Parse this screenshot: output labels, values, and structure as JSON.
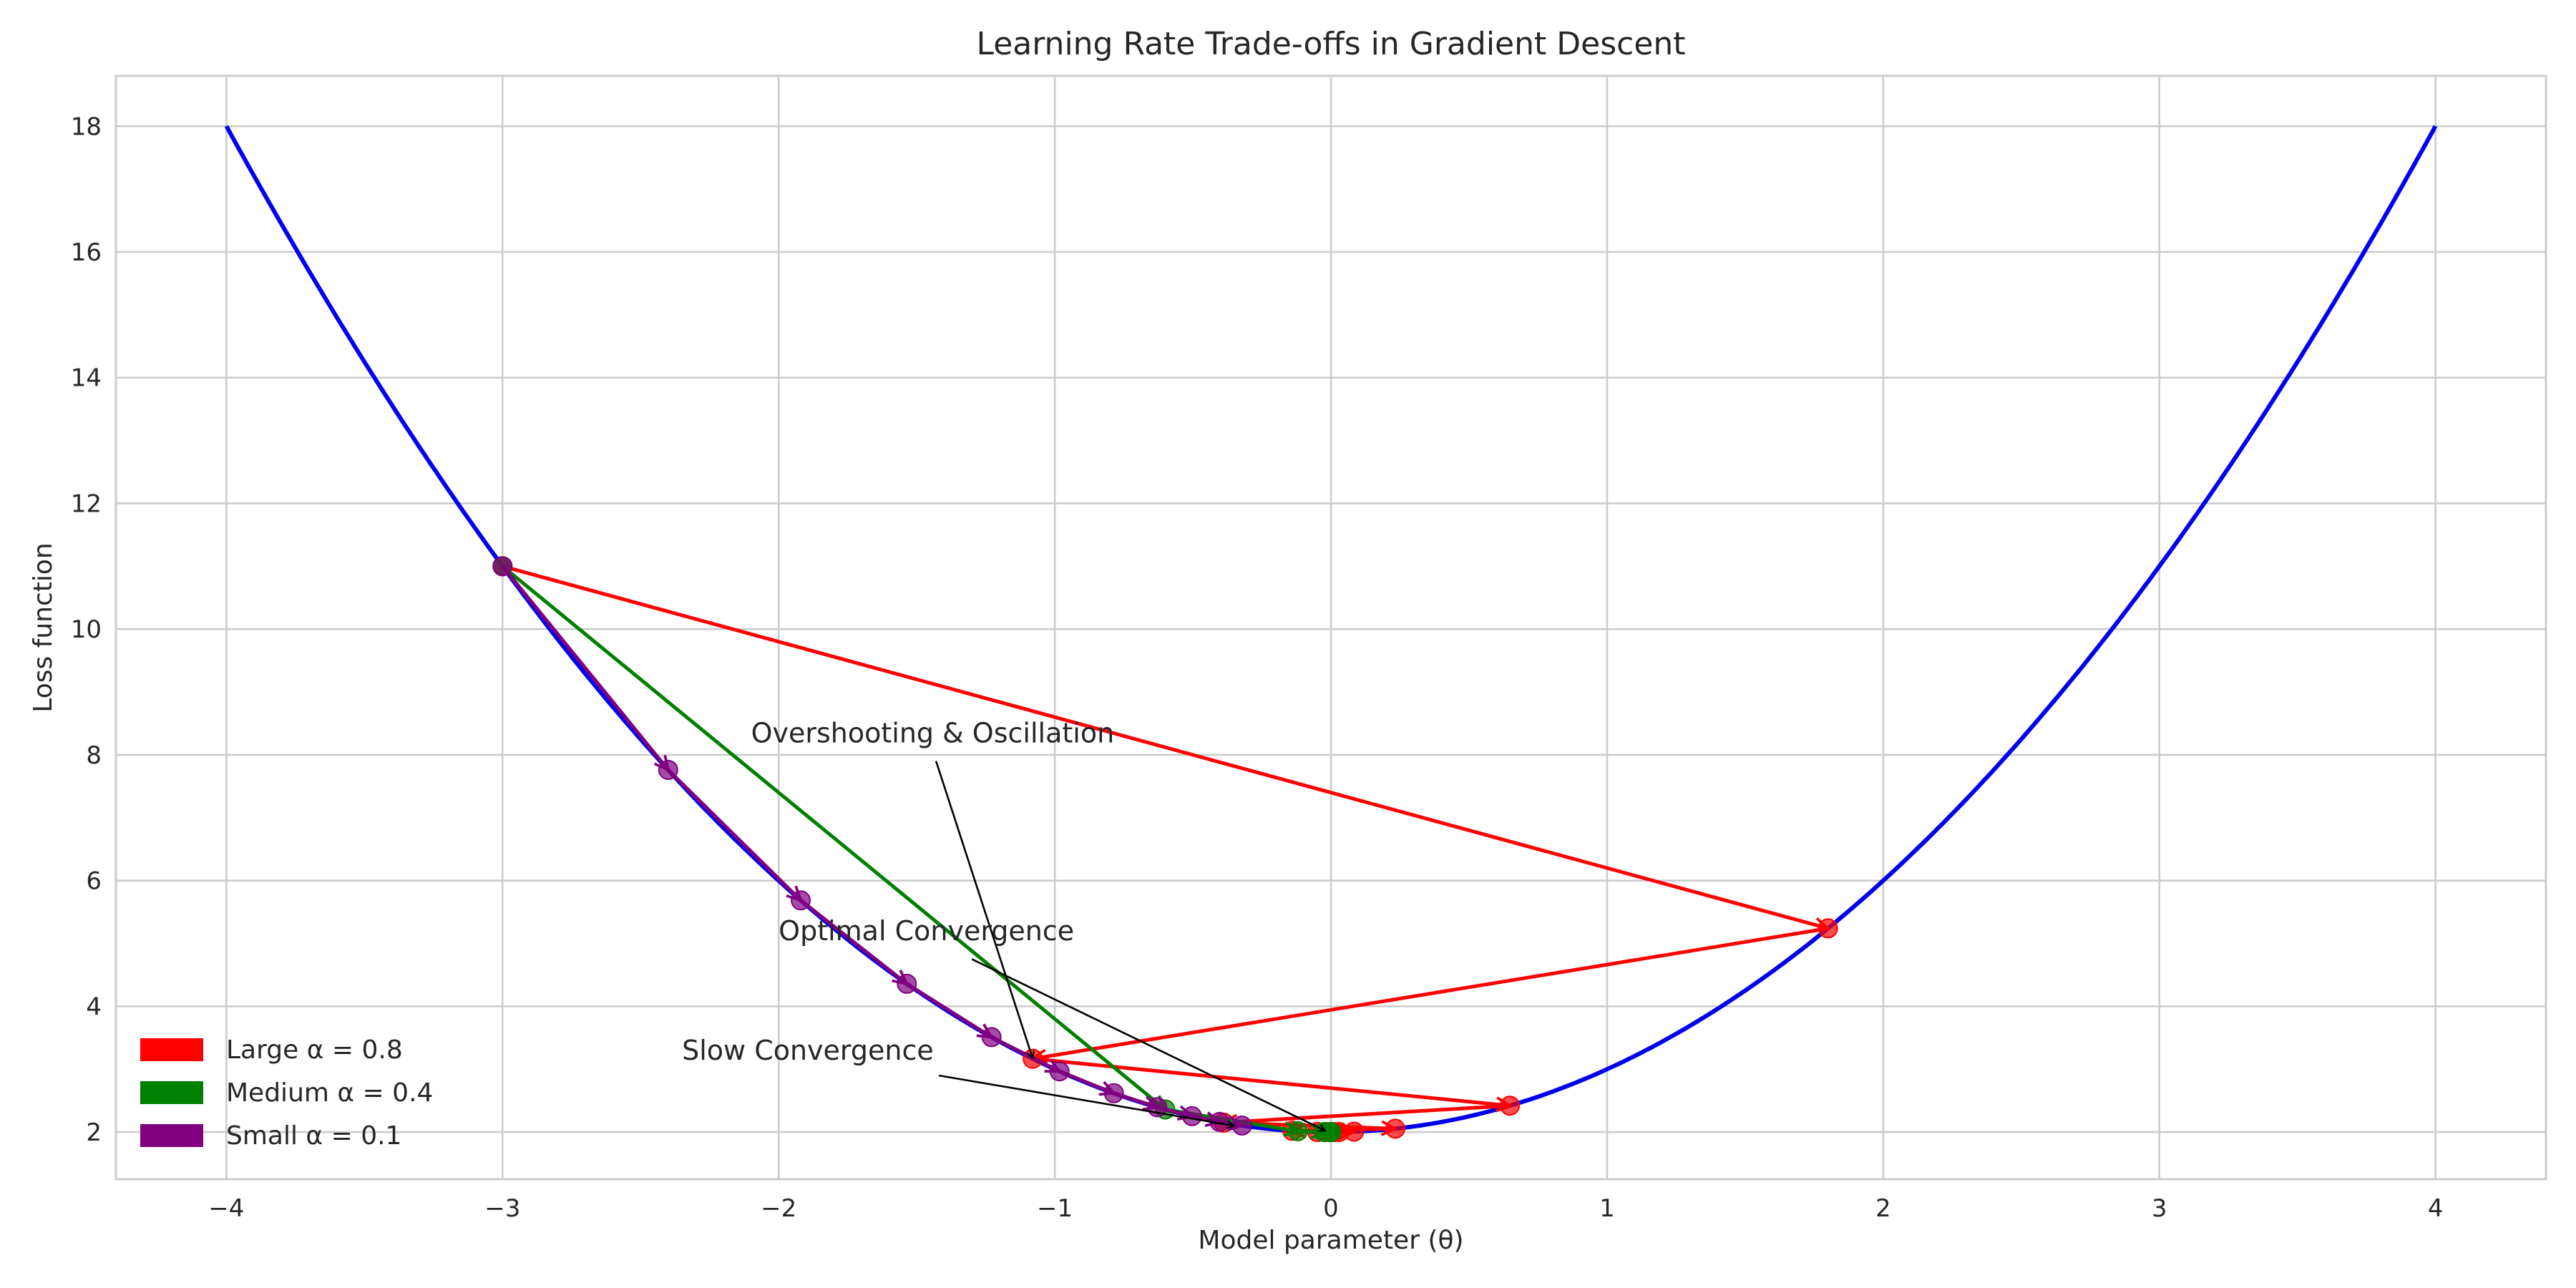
{
  "chart_data": {
    "type": "line",
    "title": "Learning Rate Trade-offs in Gradient Descent",
    "xlabel": "Model parameter (θ)",
    "ylabel": "Loss function",
    "xlim": [
      -4.4,
      4.4
    ],
    "ylim": [
      1.25,
      18.8
    ],
    "xticks": [
      -4,
      -3,
      -2,
      -1,
      0,
      1,
      2,
      3,
      4
    ],
    "xtick_labels": [
      "−4",
      "−3",
      "−2",
      "−1",
      "0",
      "1",
      "2",
      "3",
      "4"
    ],
    "yticks": [
      2,
      4,
      6,
      8,
      10,
      12,
      14,
      16,
      18
    ],
    "ytick_labels": [
      "2",
      "4",
      "6",
      "8",
      "10",
      "12",
      "14",
      "16",
      "18"
    ],
    "grid": true,
    "legend_position": "lower-left",
    "curve": {
      "function": "loss = θ² + 2",
      "x_range": [
        -4,
        4
      ],
      "color": "#0000ee"
    },
    "series": [
      {
        "name": "Large α = 0.8",
        "color": "#ff0000",
        "x": [
          -3.0,
          1.8,
          -1.08,
          0.648,
          -0.389,
          0.233,
          -0.14,
          0.084,
          -0.05,
          0.03,
          -0.018,
          0.011
        ],
        "y": [
          11.0,
          5.24,
          3.166,
          2.42,
          2.151,
          2.054,
          2.02,
          2.007,
          2.002,
          2.001,
          2.0,
          2.0
        ]
      },
      {
        "name": "Medium α = 0.4",
        "color": "#008000",
        "x": [
          -3.0,
          -0.6,
          -0.12,
          -0.024,
          -0.005,
          -0.001,
          0.0,
          0.0,
          0.0,
          0.0,
          0.0
        ],
        "y": [
          11.0,
          2.36,
          2.014,
          2.001,
          2.0,
          2.0,
          2.0,
          2.0,
          2.0,
          2.0,
          2.0
        ]
      },
      {
        "name": "Small α = 0.1",
        "color": "#800080",
        "x": [
          -3.0,
          -2.4,
          -1.92,
          -1.536,
          -1.229,
          -0.983,
          -0.786,
          -0.629,
          -0.503,
          -0.403,
          -0.322
        ],
        "y": [
          11.0,
          7.76,
          5.686,
          4.359,
          3.51,
          2.966,
          2.618,
          2.396,
          2.253,
          2.162,
          2.104
        ]
      }
    ],
    "annotations": [
      {
        "text": "Overshooting & Oscillation",
        "text_at": [
          -2.1,
          8.2
        ],
        "arrow_from": [
          -1.43,
          7.9
        ],
        "arrow_to": [
          -1.08,
          3.17
        ]
      },
      {
        "text": "Optimal Convergence",
        "text_at": [
          -2.0,
          5.05
        ],
        "arrow_from": [
          -1.3,
          4.75
        ],
        "arrow_to": [
          -0.02,
          2.02
        ]
      },
      {
        "text": "Slow Convergence",
        "text_at": [
          -2.35,
          3.15
        ],
        "arrow_from": [
          -1.42,
          2.9
        ],
        "arrow_to": [
          -0.35,
          2.1
        ]
      }
    ]
  }
}
